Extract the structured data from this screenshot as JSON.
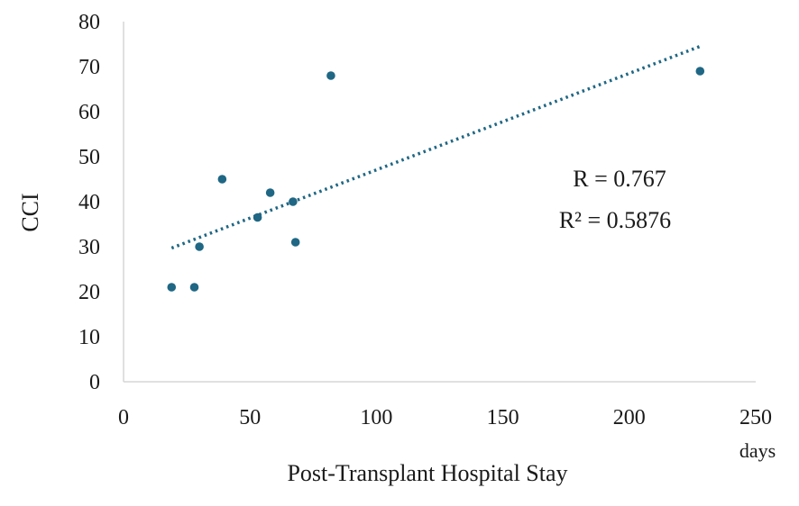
{
  "chart_data": {
    "type": "scatter",
    "title": "",
    "xlabel": "Post-Transplant Hospital Stay",
    "xunit": "days",
    "ylabel": "CCI",
    "xlim": [
      0,
      250
    ],
    "ylim": [
      0,
      80
    ],
    "xticks": [
      0,
      50,
      100,
      150,
      200,
      250
    ],
    "yticks": [
      0,
      10,
      20,
      30,
      40,
      50,
      60,
      70,
      80
    ],
    "grid": false,
    "series": [
      {
        "name": "CCI",
        "color": "#1f6784",
        "points": [
          {
            "x": 19,
            "y": 21
          },
          {
            "x": 28,
            "y": 21
          },
          {
            "x": 30,
            "y": 30
          },
          {
            "x": 39,
            "y": 45
          },
          {
            "x": 53,
            "y": 36.5
          },
          {
            "x": 58,
            "y": 42
          },
          {
            "x": 67,
            "y": 40
          },
          {
            "x": 68,
            "y": 31
          },
          {
            "x": 82,
            "y": 68
          },
          {
            "x": 228,
            "y": 69
          }
        ]
      }
    ],
    "trendline": {
      "style": "dotted",
      "color": "#1f6784",
      "x_start": 19,
      "y_start": 29.7,
      "x_end": 228,
      "y_end": 74.5
    },
    "annotations": {
      "r": "R = 0.767",
      "r2": "R² = 0.5876"
    }
  }
}
